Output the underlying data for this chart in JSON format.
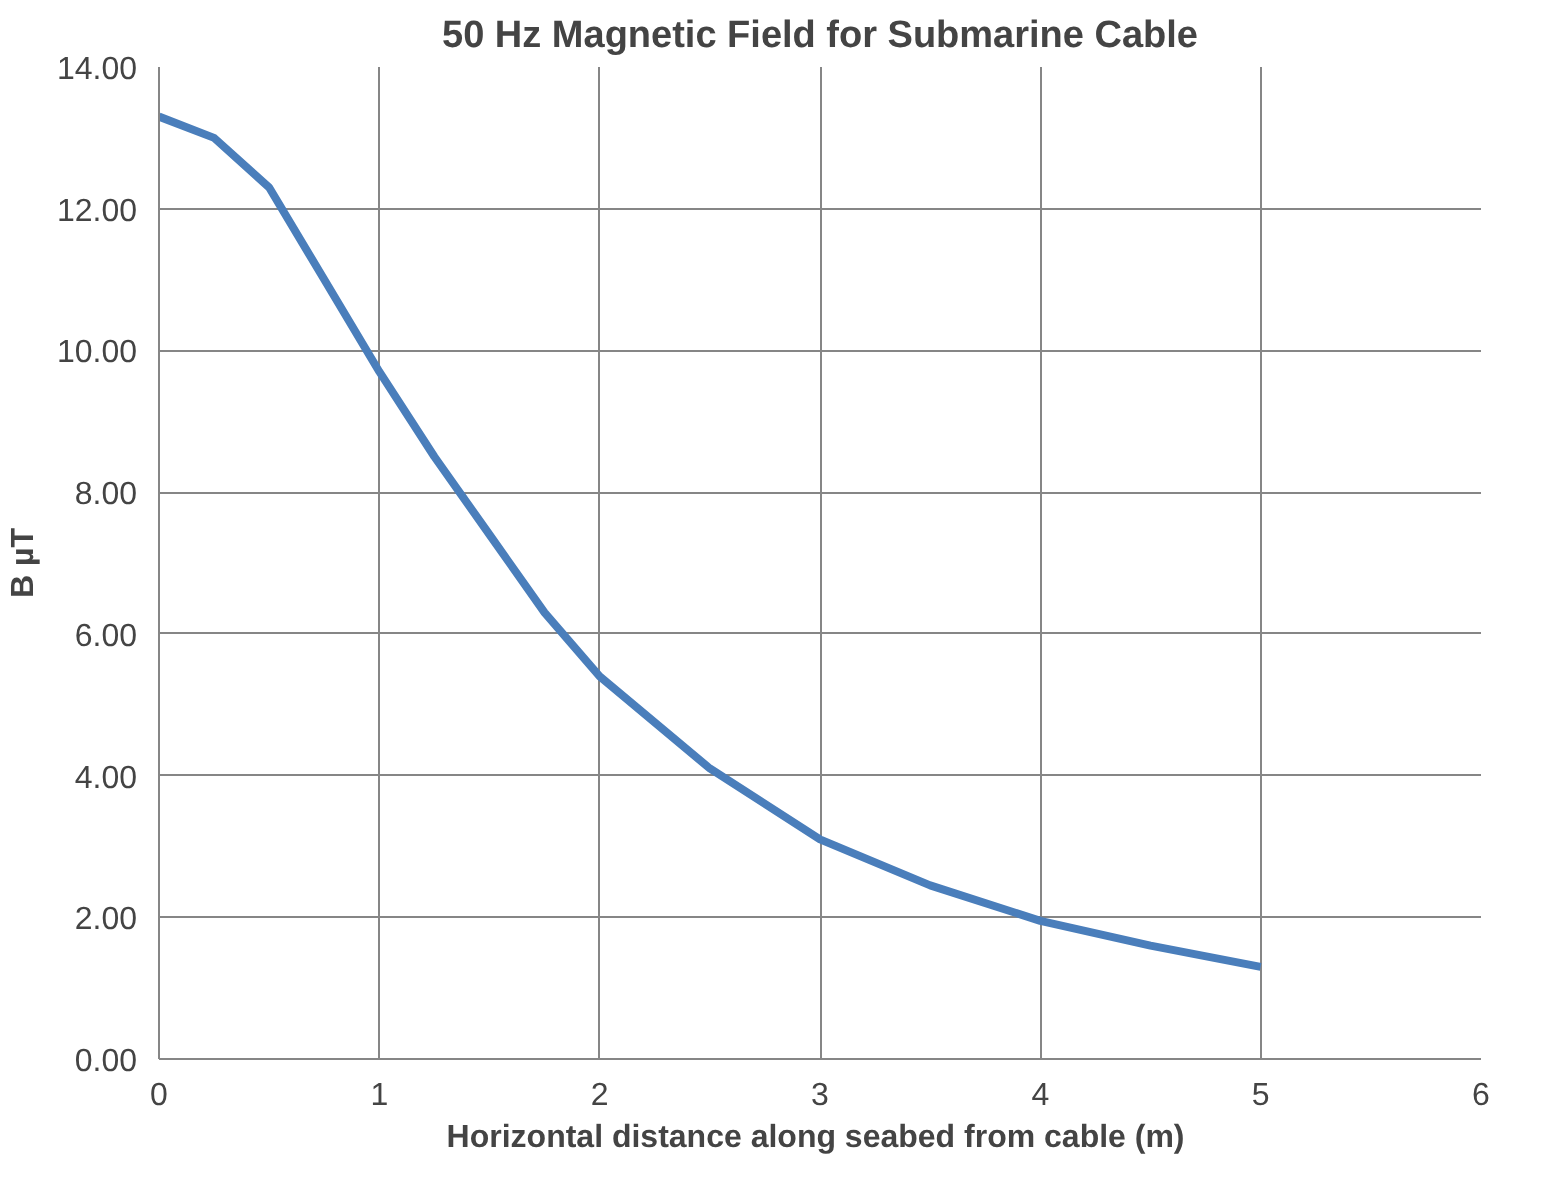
{
  "chart_data": {
    "type": "line",
    "title": "50 Hz Magnetic Field for Submarine Cable",
    "xlabel": "Horizontal distance along seabed from cable  (m)",
    "ylabel": "B µT",
    "x": [
      0,
      0.25,
      0.5,
      0.75,
      1,
      1.25,
      1.5,
      1.75,
      2,
      2.5,
      3,
      3.5,
      4,
      4.5,
      5
    ],
    "series": [
      {
        "color": "#4a7ebb",
        "values": [
          13.3,
          13.0,
          12.3,
          11.0,
          9.7,
          8.5,
          7.4,
          6.3,
          5.4,
          4.1,
          3.1,
          2.45,
          1.95,
          1.6,
          1.3
        ]
      }
    ],
    "xlim": [
      0,
      6
    ],
    "xticks": [
      0,
      1,
      2,
      3,
      4,
      5,
      6
    ],
    "ylim": [
      0,
      14
    ],
    "yticks": [
      {
        "value": 0,
        "label": "0.00"
      },
      {
        "value": 2,
        "label": "2.00"
      },
      {
        "value": 4,
        "label": "4.00"
      },
      {
        "value": 6,
        "label": "6.00"
      },
      {
        "value": 8,
        "label": "8.00"
      },
      {
        "value": 10,
        "label": "10.00"
      },
      {
        "value": 12,
        "label": "12.00"
      },
      {
        "value": 14,
        "label": "14.00"
      }
    ],
    "grid": true,
    "marker": "none",
    "line_style": "solid"
  }
}
